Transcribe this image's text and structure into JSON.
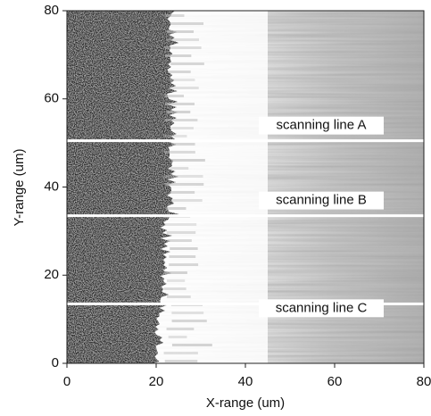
{
  "chart_data": {
    "type": "image",
    "x_label": "X-range (um)",
    "y_label": "Y-range (um)",
    "xlim": [
      0,
      80
    ],
    "ylim": [
      0,
      80
    ],
    "xticks": [
      0,
      20,
      40,
      60,
      80
    ],
    "yticks": [
      0,
      20,
      40,
      60,
      80
    ],
    "scan_lines": [
      {
        "label": "scanning line A",
        "y": 50.5
      },
      {
        "label": "scanning line B",
        "y": 33.5
      },
      {
        "label": "scanning line C",
        "y": 13.5
      }
    ]
  }
}
